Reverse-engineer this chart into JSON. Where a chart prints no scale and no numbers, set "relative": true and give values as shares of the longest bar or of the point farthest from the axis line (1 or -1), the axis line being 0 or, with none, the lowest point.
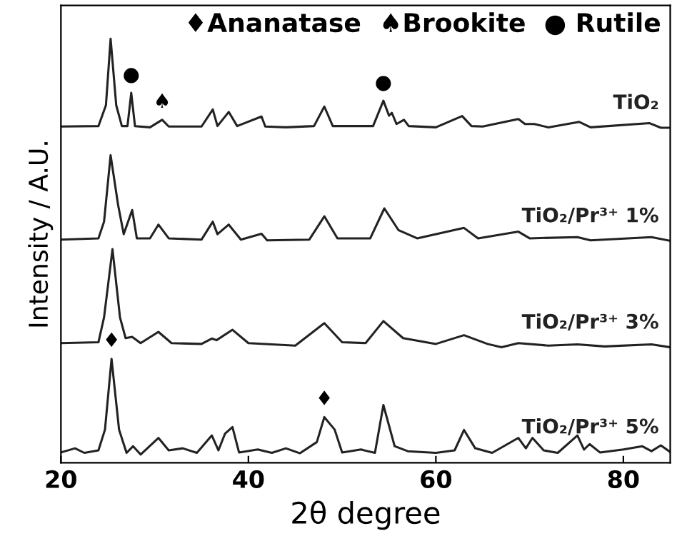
{
  "chart_data": {
    "type": "line",
    "relative": true,
    "xlabel": "2θ degree",
    "ylabel": "Intensity / A.U.",
    "xlim": [
      20,
      85
    ],
    "xticks": [
      20,
      40,
      60,
      80
    ],
    "grid": false,
    "legend": false,
    "marker": "none",
    "line_style": "solid",
    "series": [
      {
        "name": "TiO₂",
        "color": "#222222",
        "x": [
          20,
          24.0,
          24.8,
          25.3,
          25.9,
          26.5,
          27.1,
          27.5,
          27.9,
          29.5,
          30.8,
          31.5,
          35,
          36.2,
          36.7,
          37.9,
          38.8,
          41.4,
          41.8,
          44,
          47,
          48.1,
          49,
          53.3,
          54.4,
          55.0,
          55.3,
          55.8,
          56.6,
          57.1,
          60,
          62.8,
          63.8,
          65,
          68.8,
          69.5,
          70.5,
          72,
          75.3,
          76.5,
          82.8,
          84,
          85
        ],
        "values": [
          0.789,
          0.79,
          0.84,
          1.0,
          0.84,
          0.79,
          0.79,
          0.87,
          0.79,
          0.787,
          0.805,
          0.789,
          0.789,
          0.83,
          0.79,
          0.824,
          0.79,
          0.813,
          0.789,
          0.787,
          0.79,
          0.837,
          0.79,
          0.79,
          0.851,
          0.815,
          0.822,
          0.795,
          0.805,
          0.79,
          0.787,
          0.814,
          0.79,
          0.789,
          0.807,
          0.795,
          0.795,
          0.787,
          0.8,
          0.787,
          0.797,
          0.786,
          0.786
        ]
      },
      {
        "name": "TiO₂/Pr³⁺ 1%",
        "color": "#222222",
        "x": [
          20,
          24.0,
          24.6,
          25.3,
          26.1,
          26.7,
          27.6,
          28.1,
          29.5,
          30.4,
          31.5,
          35,
          36.2,
          36.7,
          37.9,
          39.2,
          41.4,
          42,
          46.5,
          48.1,
          49.5,
          53,
          54.5,
          56,
          58,
          63.0,
          64.5,
          68.8,
          70,
          75.1,
          76.5,
          83,
          85
        ],
        "values": [
          0.517,
          0.52,
          0.56,
          0.72,
          0.6,
          0.53,
          0.588,
          0.52,
          0.52,
          0.553,
          0.52,
          0.517,
          0.56,
          0.53,
          0.553,
          0.517,
          0.531,
          0.515,
          0.517,
          0.573,
          0.52,
          0.52,
          0.592,
          0.54,
          0.52,
          0.545,
          0.52,
          0.536,
          0.52,
          0.523,
          0.515,
          0.523,
          0.514
        ]
      },
      {
        "name": "TiO₂/Pr³⁺ 3%",
        "color": "#222222",
        "x": [
          20,
          24.0,
          24.6,
          25.5,
          26.3,
          26.9,
          27.6,
          28.5,
          30.4,
          31.8,
          35,
          36.1,
          36.6,
          38.3,
          40,
          45,
          48.1,
          50,
          52.5,
          54.4,
          56.5,
          60,
          63.0,
          65.5,
          67,
          68.8,
          72,
          75.1,
          78,
          83,
          85
        ],
        "values": [
          0.268,
          0.27,
          0.33,
          0.494,
          0.33,
          0.28,
          0.283,
          0.268,
          0.295,
          0.268,
          0.266,
          0.279,
          0.275,
          0.3,
          0.268,
          0.262,
          0.316,
          0.27,
          0.268,
          0.321,
          0.28,
          0.266,
          0.287,
          0.266,
          0.258,
          0.268,
          0.262,
          0.265,
          0.26,
          0.265,
          0.258
        ]
      },
      {
        "name": "TiO₂/Pr³⁺ 5%",
        "color": "#222222",
        "x": [
          20,
          21.5,
          22.5,
          24.0,
          24.7,
          25.4,
          26.2,
          27.0,
          27.7,
          28.5,
          30.4,
          31.5,
          33,
          34.5,
          36.1,
          36.8,
          37.5,
          38.3,
          39,
          41,
          42.5,
          44,
          45.5,
          47.3,
          48.1,
          49.2,
          50,
          52,
          53.5,
          54.4,
          55.6,
          57,
          60,
          62,
          63.0,
          64.2,
          66,
          68.8,
          69.6,
          70.3,
          71.5,
          73,
          75.1,
          75.8,
          76.4,
          77.5,
          80,
          82,
          83,
          84,
          85
        ],
        "values": [
          0.005,
          0.015,
          0.004,
          0.01,
          0.06,
          0.23,
          0.06,
          0.004,
          0.02,
          0.0,
          0.04,
          0.01,
          0.015,
          0.004,
          0.046,
          0.01,
          0.05,
          0.066,
          0.005,
          0.012,
          0.004,
          0.015,
          0.003,
          0.03,
          0.09,
          0.06,
          0.005,
          0.012,
          0.004,
          0.119,
          0.02,
          0.008,
          0.004,
          0.01,
          0.059,
          0.015,
          0.004,
          0.04,
          0.015,
          0.04,
          0.01,
          0.004,
          0.046,
          0.012,
          0.025,
          0.005,
          0.012,
          0.02,
          0.008,
          0.022,
          0.006
        ]
      }
    ],
    "annotations": [
      "♦Ananatase  ♠Brookite  ● Rutile",
      {
        "text": "●",
        "x": 27.5,
        "y": 0.87
      },
      {
        "text": "♠",
        "x": 30.8,
        "y": 0.805
      },
      {
        "text": "●",
        "x": 54.4,
        "y": 0.851
      },
      {
        "text": "♦",
        "x": 25.4,
        "y": 0.23
      },
      {
        "text": "♦",
        "x": 48.1,
        "y": 0.09
      }
    ]
  }
}
